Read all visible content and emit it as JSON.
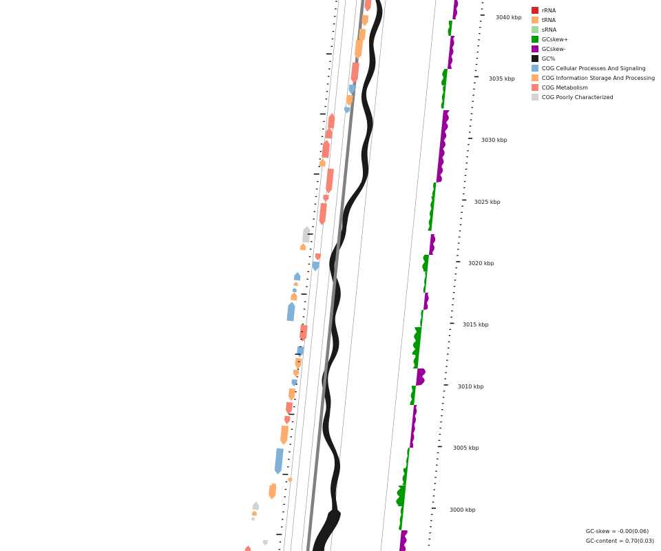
{
  "legend": [
    {
      "label": "rRNA",
      "color": "#d62728"
    },
    {
      "label": "tRNA",
      "color": "#fdae6b"
    },
    {
      "label": "sRNA",
      "color": "#a1d99b"
    },
    {
      "label": "GCskew+",
      "color": "#009900"
    },
    {
      "label": "GCskew-",
      "color": "#990099"
    },
    {
      "label": "GC%",
      "color": "#1a1a1a"
    },
    {
      "label": "COG Cellular Processes And Signaling",
      "color": "#7fb1d9"
    },
    {
      "label": "COG Information Storage And Processing",
      "color": "#fdae6b"
    },
    {
      "label": "COG Metabolism",
      "color": "#f88574"
    },
    {
      "label": "COG Poorly Characterized",
      "color": "#d3d3d3"
    }
  ],
  "ruler_labels": [
    "3040 kbp",
    "3035 kbp",
    "3030 kbp",
    "3025 kbp",
    "3020 kbp",
    "3015 kbp",
    "3010 kbp",
    "3005 kbp",
    "3000 kbp"
  ],
  "stats": {
    "gc_skew": "GC-skew = -0.00(0.06)",
    "gc_content": "GC-content = 0.70(0.03)"
  }
}
